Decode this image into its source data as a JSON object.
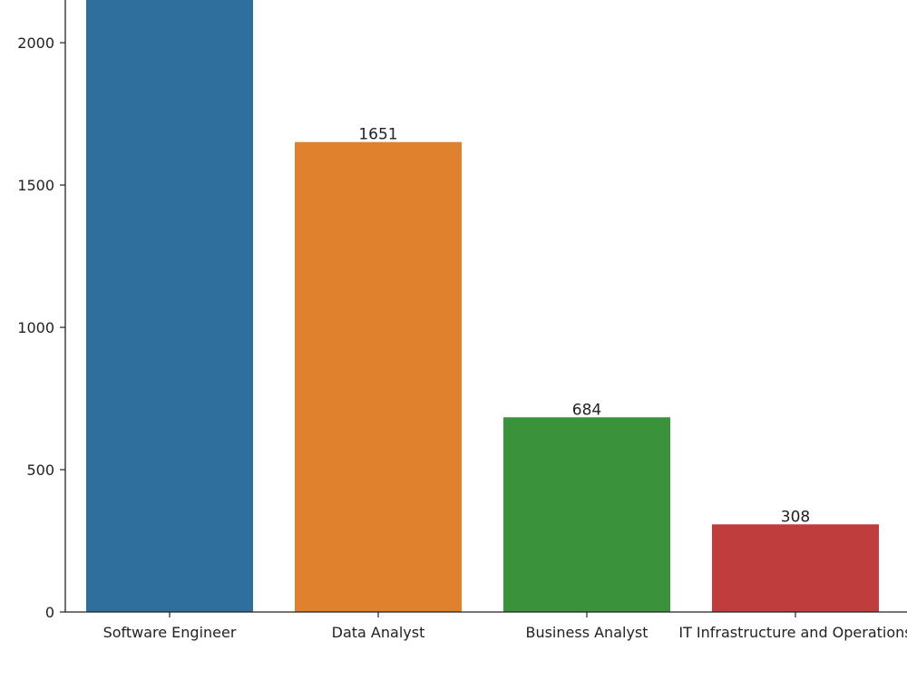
{
  "chart_data": {
    "type": "bar",
    "title": "",
    "xlabel": "",
    "ylabel": "",
    "categories": [
      "Software Engineer",
      "Data Analyst",
      "Business Analyst",
      "IT Infrastructure and Operations"
    ],
    "values": [
      2300,
      1651,
      684,
      308
    ],
    "data_labels": [
      "",
      "1651",
      "684",
      "308"
    ],
    "colors": [
      "#2e6f9e",
      "#e0812e",
      "#3a923a",
      "#c03d3e"
    ],
    "ylim": [
      0,
      2150
    ],
    "yticks": [
      0,
      500,
      1000,
      1500,
      2000
    ],
    "ytick_labels": [
      "0",
      "500",
      "1000",
      "1500",
      "2000"
    ],
    "grid": false,
    "legend": "none"
  }
}
